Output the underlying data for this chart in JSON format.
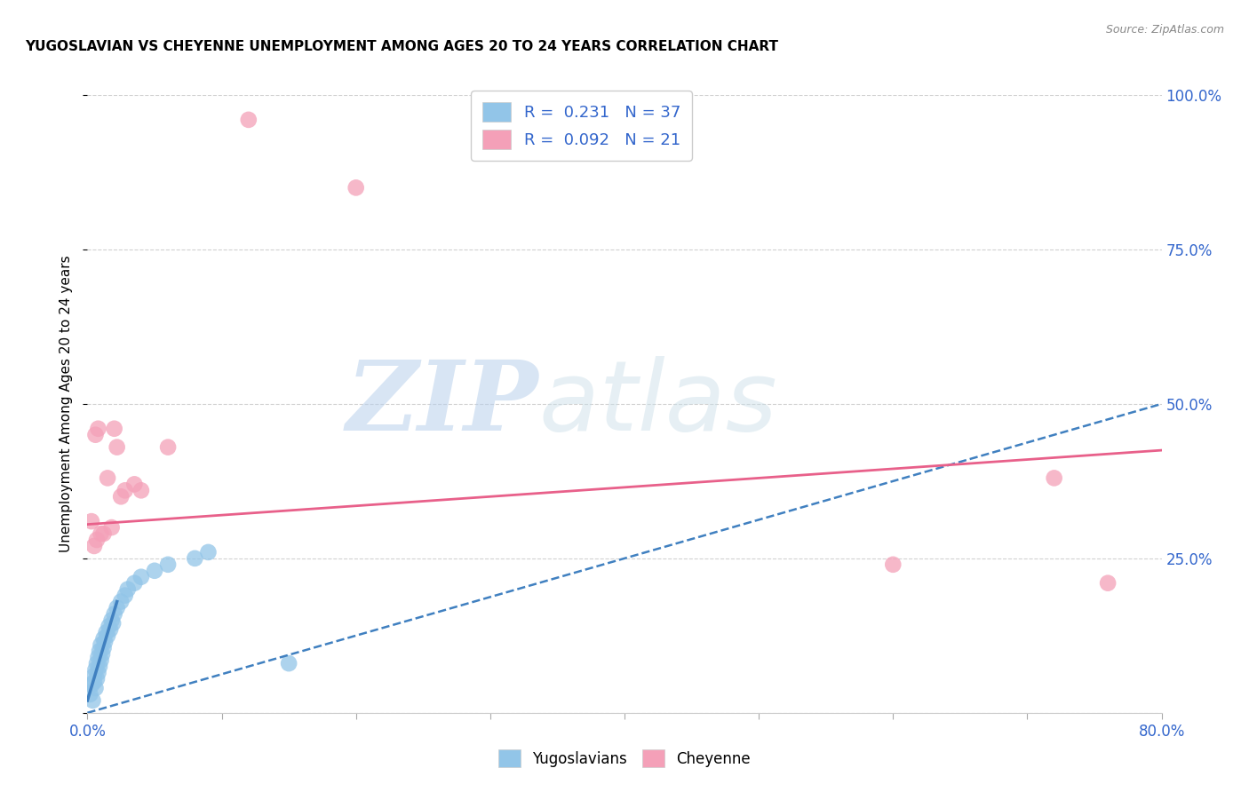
{
  "title": "YUGOSLAVIAN VS CHEYENNE UNEMPLOYMENT AMONG AGES 20 TO 24 YEARS CORRELATION CHART",
  "source": "Source: ZipAtlas.com",
  "ylabel": "Unemployment Among Ages 20 to 24 years",
  "xlim": [
    0.0,
    0.8
  ],
  "ylim": [
    0.0,
    1.0
  ],
  "xticks": [
    0.0,
    0.1,
    0.2,
    0.3,
    0.4,
    0.5,
    0.6,
    0.7,
    0.8
  ],
  "xticklabels": [
    "0.0%",
    "",
    "",
    "",
    "",
    "",
    "",
    "",
    "80.0%"
  ],
  "yticks": [
    0.0,
    0.25,
    0.5,
    0.75,
    1.0
  ],
  "yticklabels_right": [
    "",
    "25.0%",
    "50.0%",
    "75.0%",
    "100.0%"
  ],
  "blue_color": "#92C5E8",
  "pink_color": "#F4A0B8",
  "blue_line_color": "#4080C0",
  "pink_line_color": "#E8608A",
  "R_blue": 0.231,
  "N_blue": 37,
  "R_pink": 0.092,
  "N_pink": 21,
  "legend_text_color": "#3366CC",
  "watermark_zip": "ZIP",
  "watermark_atlas": "atlas",
  "background_color": "#FFFFFF",
  "grid_color": "#CCCCCC",
  "yugoslavian_x": [
    0.002,
    0.003,
    0.004,
    0.005,
    0.005,
    0.006,
    0.006,
    0.007,
    0.007,
    0.008,
    0.008,
    0.009,
    0.009,
    0.01,
    0.01,
    0.011,
    0.012,
    0.012,
    0.013,
    0.014,
    0.015,
    0.016,
    0.017,
    0.018,
    0.019,
    0.02,
    0.022,
    0.025,
    0.028,
    0.03,
    0.035,
    0.04,
    0.05,
    0.06,
    0.08,
    0.09,
    0.15
  ],
  "yugoslavian_y": [
    0.03,
    0.045,
    0.02,
    0.05,
    0.06,
    0.04,
    0.07,
    0.055,
    0.08,
    0.065,
    0.09,
    0.075,
    0.1,
    0.085,
    0.11,
    0.095,
    0.105,
    0.12,
    0.115,
    0.13,
    0.125,
    0.14,
    0.135,
    0.15,
    0.145,
    0.16,
    0.17,
    0.18,
    0.19,
    0.2,
    0.21,
    0.22,
    0.23,
    0.24,
    0.25,
    0.26,
    0.08
  ],
  "cheyenne_x": [
    0.003,
    0.005,
    0.006,
    0.007,
    0.008,
    0.01,
    0.012,
    0.015,
    0.018,
    0.02,
    0.022,
    0.025,
    0.028,
    0.035,
    0.04,
    0.06,
    0.12,
    0.2,
    0.6,
    0.72,
    0.76
  ],
  "cheyenne_y": [
    0.31,
    0.27,
    0.45,
    0.28,
    0.46,
    0.29,
    0.29,
    0.38,
    0.3,
    0.46,
    0.43,
    0.35,
    0.36,
    0.37,
    0.36,
    0.43,
    0.96,
    0.85,
    0.24,
    0.38,
    0.21
  ],
  "blue_trend_x": [
    0.0,
    0.8
  ],
  "blue_trend_y": [
    0.0,
    0.5
  ],
  "pink_trend_x": [
    0.0,
    0.8
  ],
  "pink_trend_y": [
    0.305,
    0.425
  ]
}
